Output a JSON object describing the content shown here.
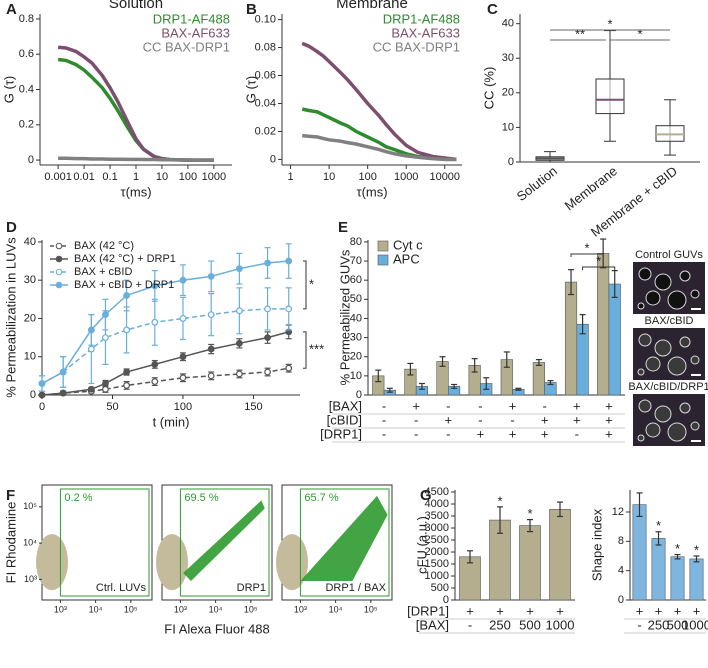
{
  "chart_data": [
    {
      "type": "line",
      "panel": "A",
      "title": "Solution",
      "ylabel": "G (τ)",
      "xlabel": "τ(ms)",
      "xlog": true,
      "x": [
        0.001,
        0.002,
        0.005,
        0.01,
        0.02,
        0.05,
        0.1,
        0.2,
        0.5,
        1,
        2,
        5,
        10,
        20,
        50,
        100,
        200,
        500,
        1000
      ],
      "xlim": [
        0.0002,
        5000
      ],
      "xticks": [
        0.001,
        0.01,
        0.1,
        1,
        10,
        100,
        1000
      ],
      "ylim": [
        -0.028,
        0.828
      ],
      "yticks": [
        0,
        0.2,
        0.4,
        0.6,
        0.8
      ],
      "legend": "upper right",
      "series": [
        {
          "name": "DRP1-AF488",
          "color": "#2e8b2e",
          "values": [
            0.57,
            0.565,
            0.54,
            0.51,
            0.47,
            0.41,
            0.35,
            0.28,
            0.18,
            0.11,
            0.06,
            0.02,
            0.008,
            0.003,
            0.001,
            0,
            0,
            0,
            0
          ]
        },
        {
          "name": "BAX-AF633",
          "color": "#7d4f6e",
          "values": [
            0.64,
            0.635,
            0.615,
            0.585,
            0.55,
            0.48,
            0.41,
            0.33,
            0.21,
            0.12,
            0.06,
            0.02,
            0.007,
            0.002,
            0.001,
            0,
            0,
            0,
            0
          ]
        },
        {
          "name": "CC BAX-DRP1",
          "color": "#808080",
          "values": [
            0.01,
            0.01,
            0.008,
            0.008,
            0.006,
            0.006,
            0.005,
            0.005,
            0.004,
            0.004,
            0.003,
            0.003,
            0.002,
            0.002,
            0.001,
            0.001,
            0,
            0,
            0
          ]
        }
      ]
    },
    {
      "type": "line",
      "panel": "B",
      "title": "Membrane",
      "ylabel": "G (τ)",
      "xlabel": "τ(ms)",
      "xlog": true,
      "x": [
        2,
        3,
        5,
        7,
        10,
        20,
        30,
        50,
        100,
        200,
        300,
        500,
        1000,
        2000,
        5000,
        10000,
        20000
      ],
      "xlim": [
        0.6,
        28000
      ],
      "xticks": [
        1,
        10,
        100,
        1000,
        10000
      ],
      "ylim": [
        -0.004,
        0.104
      ],
      "yticks": [
        0,
        0.02,
        0.04,
        0.06,
        0.08,
        {
          "value": 0.1,
          "label": "0.10"
        }
      ],
      "legend": "upper right",
      "series": [
        {
          "name": "DRP1-AF488",
          "color": "#2e8b2e",
          "values": [
            0.036,
            0.035,
            0.034,
            0.032,
            0.03,
            0.026,
            0.024,
            0.02,
            0.016,
            0.012,
            0.009,
            0.007,
            0.004,
            0.002,
            0.001,
            0,
            0
          ]
        },
        {
          "name": "BAX-AF633",
          "color": "#7d4f6e",
          "values": [
            0.083,
            0.081,
            0.077,
            0.074,
            0.07,
            0.062,
            0.057,
            0.05,
            0.04,
            0.031,
            0.025,
            0.018,
            0.01,
            0.005,
            0.002,
            0.001,
            0
          ]
        },
        {
          "name": "CC BAX-DRP1",
          "color": "#808080",
          "values": [
            0.017,
            0.0165,
            0.016,
            0.015,
            0.014,
            0.013,
            0.012,
            0.011,
            0.009,
            0.007,
            0.0055,
            0.004,
            0.0025,
            0.0015,
            0.0005,
            0,
            0
          ]
        }
      ]
    },
    {
      "type": "box",
      "panel": "C",
      "ylabel": "CC (%)",
      "ylim": [
        0,
        42.8
      ],
      "yticks": [
        0,
        10,
        20,
        30,
        40
      ],
      "categories": [
        "Solution",
        "Membrane",
        "Membrane + cBID"
      ],
      "colors": [
        "#555555",
        "#7d4f6e",
        "#b5ae8e"
      ],
      "boxes": [
        {
          "min": 0,
          "q1": 0.5,
          "median": 1,
          "q3": 1.5,
          "max": 3
        },
        {
          "min": 6,
          "q1": 14,
          "median": 18,
          "q3": 24,
          "max": 38
        },
        {
          "min": 2,
          "q1": 6,
          "median": 8,
          "q3": 10.5,
          "max": 18
        }
      ],
      "annotations": [
        "*",
        "**",
        "*"
      ]
    },
    {
      "type": "line",
      "panel": "D",
      "xlabel": "t (min)",
      "ylabel": "% Permeabilization in LUVs",
      "x": [
        0,
        15,
        35,
        45,
        60,
        80,
        100,
        120,
        140,
        160,
        175
      ],
      "xlim": [
        0,
        183
      ],
      "xticks": [
        0,
        50,
        100,
        150
      ],
      "ylim": [
        0,
        40.5
      ],
      "yticks": [
        0,
        10,
        20,
        30,
        40
      ],
      "legend": "upper left",
      "series": [
        {
          "name": "BAX (42 °C)",
          "color": "#555555",
          "dash": true,
          "marker": "open",
          "values": [
            0,
            0.5,
            1,
            1.5,
            2.5,
            3.5,
            4.5,
            5,
            5.5,
            6,
            7
          ],
          "errors": [
            0.3,
            0.5,
            0.5,
            0.8,
            1,
            1,
            1,
            1,
            1,
            1,
            1
          ]
        },
        {
          "name": "BAX (42 °C) + DRP1",
          "color": "#555555",
          "dash": false,
          "marker": "filled",
          "values": [
            0,
            0.5,
            1.5,
            3,
            6,
            8,
            10,
            12,
            13.5,
            15,
            16.5
          ],
          "errors": [
            0.3,
            0.5,
            0.5,
            0.8,
            0.8,
            1,
            1,
            1.2,
            1.2,
            1.5,
            1.8
          ]
        },
        {
          "name": "BAX + cBID",
          "color": "#6aaedc",
          "dash": true,
          "marker": "open",
          "values": [
            3,
            6,
            12,
            15,
            17,
            19,
            20,
            21,
            22,
            22.5,
            22.5
          ],
          "errors": [
            2,
            4,
            9,
            7,
            6,
            6,
            5.5,
            5.5,
            6,
            5.5,
            5.5
          ]
        },
        {
          "name": "BAX + cBID + DRP1",
          "color": "#6aaedc",
          "dash": false,
          "marker": "filled",
          "values": [
            3,
            6,
            17,
            21,
            26,
            28.5,
            30,
            31,
            33,
            34.5,
            35
          ],
          "errors": [
            2,
            4,
            4,
            4,
            4,
            4,
            4,
            4,
            4,
            4,
            4.5
          ]
        }
      ],
      "annotations": [
        "*",
        "***"
      ]
    },
    {
      "type": "bar",
      "panel": "E",
      "ylabel": "% Permeabilized GUVs",
      "ylim": [
        0,
        81
      ],
      "yticks": [
        0,
        10,
        20,
        30,
        40,
        50,
        60,
        70,
        80
      ],
      "legend": "upper left",
      "series": [
        {
          "name": "Cyt c",
          "color": "#b5ae8e",
          "values": [
            10,
            13.5,
            17.5,
            15.5,
            18.5,
            17,
            59,
            74
          ],
          "errors": [
            3,
            3,
            2.5,
            3.5,
            4,
            1.5,
            6.5,
            7.5
          ]
        },
        {
          "name": "APC",
          "color": "#6aaedc",
          "values": [
            2.5,
            4.5,
            4.5,
            6,
            3,
            6.5,
            37,
            58
          ],
          "errors": [
            1,
            1.5,
            1,
            3,
            0.5,
            1,
            5,
            7
          ]
        }
      ],
      "conditions": [
        {
          "name": "[BAX]",
          "values": [
            "-",
            "+",
            "-",
            "-",
            "+",
            "-",
            "+",
            "+"
          ]
        },
        {
          "name": "[cBID]",
          "values": [
            "-",
            "-",
            "+",
            "-",
            "-",
            "+",
            "+",
            "+"
          ]
        },
        {
          "name": "[DRP1]",
          "values": [
            "-",
            "-",
            "-",
            "+",
            "+",
            "+",
            "-",
            "+"
          ]
        }
      ],
      "annotations": [
        "*",
        "*"
      ],
      "images": [
        "Control GUVs",
        "BAX/cBID",
        "BAX/cBID/DRP1"
      ]
    },
    {
      "type": "flow",
      "panel": "F",
      "ylabel": "FI Rhodamine",
      "xlabel": "FI Alexa Fluor 488",
      "xlim": [
        300,
        400000
      ],
      "xticks": [
        {
          "value": 1000,
          "label": "10³"
        },
        {
          "value": 10000,
          "label": "10⁴"
        },
        {
          "value": 100000,
          "label": "10⁵"
        }
      ],
      "ylim": [
        270,
        400000
      ],
      "yticks": [
        {
          "value": 1000,
          "label": "10³"
        },
        {
          "value": 10000,
          "label": "10⁴"
        },
        {
          "value": 100000,
          "label": "10⁵"
        }
      ],
      "categories": [
        "Ctrl. LUVs",
        "DRP1",
        "DRP1 / BAX"
      ],
      "values": [
        0.2,
        69.5,
        65.7
      ],
      "value_labels": [
        "0.2 %",
        "69.5 %",
        "65.7 %"
      ]
    },
    {
      "type": "bar",
      "panel": "G",
      "ylabel": "cFU (a.u.)",
      "ylim": [
        0,
        4583
      ],
      "yticks": [
        0,
        500,
        1000,
        1500,
        2000,
        2500,
        3000,
        3500,
        4000,
        4500
      ],
      "series": [
        {
          "color": "#b5ae8e",
          "values": [
            1800,
            3330,
            3100,
            3780
          ],
          "errors": [
            250,
            550,
            250,
            300
          ]
        }
      ],
      "significance": [
        null,
        "*",
        "*",
        null
      ],
      "conditions": [
        {
          "name": "[DRP1]",
          "values": [
            "+",
            "+",
            "+",
            "+"
          ]
        },
        {
          "name": "[BAX]",
          "values": [
            "-",
            "250",
            "500",
            "1000"
          ]
        }
      ]
    },
    {
      "type": "bar",
      "ylabel": "Shape index",
      "ylim": [
        0,
        15
      ],
      "yticks": [
        0,
        4,
        8,
        12
      ],
      "series": [
        {
          "color": "#7fb6e0",
          "values": [
            13,
            8.4,
            5.9,
            5.6
          ],
          "errors": [
            1.6,
            0.9,
            0.3,
            0.4
          ]
        }
      ],
      "significance": [
        null,
        "*",
        "*",
        "*"
      ],
      "conditions": [
        {
          "values": [
            "+",
            "+",
            "+",
            "+"
          ]
        },
        {
          "values": [
            "-",
            "250",
            "500",
            "1000"
          ]
        }
      ]
    }
  ]
}
